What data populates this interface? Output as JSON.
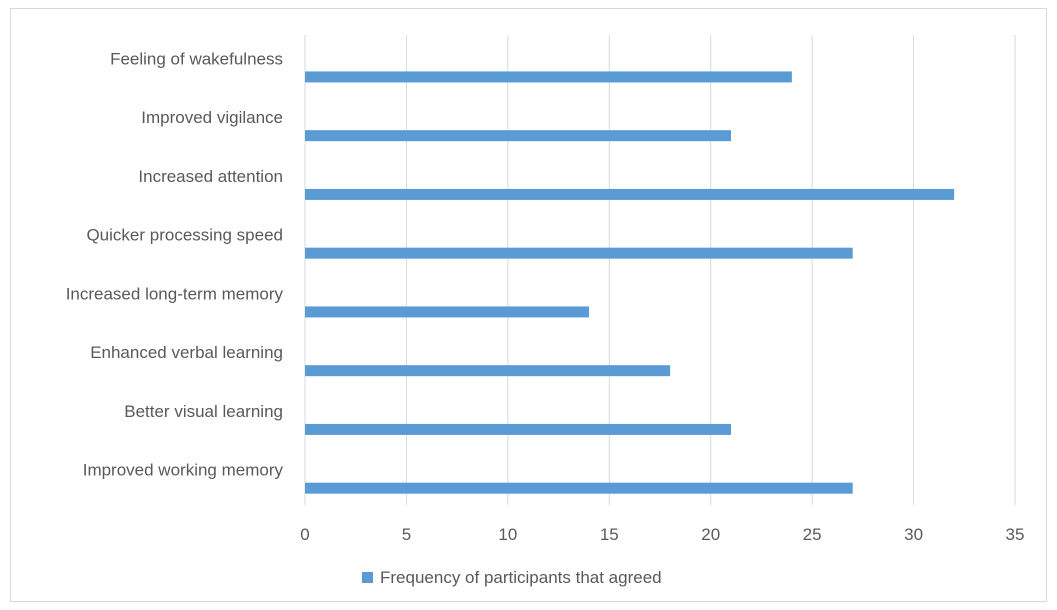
{
  "chart_data": {
    "type": "bar",
    "orientation": "horizontal",
    "categories": [
      "Feeling of wakefulness",
      "Improved vigilance",
      "Increased attention",
      "Quicker processing speed",
      "Increased long-term memory",
      "Enhanced verbal learning",
      "Better visual learning",
      "Improved working memory"
    ],
    "series": [
      {
        "name": "Frequency of participants that agreed",
        "values": [
          24,
          21,
          32,
          27,
          14,
          18,
          21,
          27
        ],
        "color": "#5b9bd5"
      }
    ],
    "title": "",
    "xlabel": "",
    "ylabel": "",
    "xlim": [
      0,
      35
    ],
    "xticks": [
      "0",
      "5",
      "10",
      "15",
      "20",
      "25",
      "30",
      "35"
    ],
    "grid": "vertical",
    "legend_position": "bottom",
    "gridline_color": "#d9d9d9",
    "text_color": "#595959"
  }
}
